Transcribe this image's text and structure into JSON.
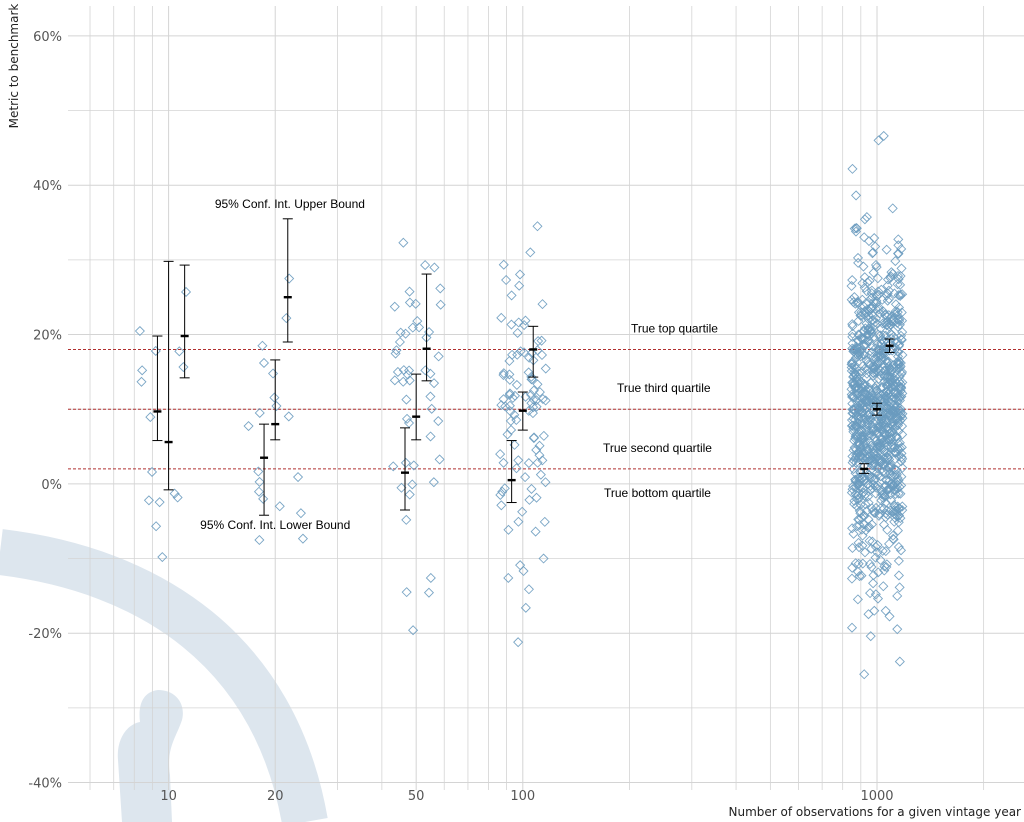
{
  "chart_data": {
    "type": "scatter",
    "title": "",
    "xlabel": "Number of observations for a given vintage year",
    "ylabel": "Metric to benchmark",
    "x_scale": "log",
    "xlim": [
      5.2,
      2600
    ],
    "ylim": [
      -41,
      64
    ],
    "x_ticks": [
      10,
      20,
      50,
      100,
      1000
    ],
    "x_tick_labels": [
      "10",
      "20",
      "50",
      "100",
      "1000"
    ],
    "x_minor_gridlines": [
      6,
      7,
      8,
      9,
      30,
      40,
      60,
      70,
      80,
      90,
      200,
      300,
      400,
      500,
      600,
      700,
      800,
      900,
      2000
    ],
    "y_ticks": [
      -40,
      -20,
      0,
      20,
      40,
      60
    ],
    "y_tick_labels": [
      "-40%",
      "-20%",
      "0%",
      "20%",
      "40%",
      "60%"
    ],
    "y_minor_gridlines": [
      -30,
      -10,
      10,
      30,
      50
    ],
    "grid": true,
    "colors": {
      "points": "#6a9bbf",
      "reference_lines": "#b03030",
      "error_bars": "#000000",
      "grid": "#d4d4d4",
      "watermark": "#dde6ee"
    },
    "reference_lines": [
      {
        "y": 18.0,
        "label": "True top quartile"
      },
      {
        "y": 10.0,
        "label": "True third quartile"
      },
      {
        "y": 2.0,
        "label": "True second quartile"
      }
    ],
    "extra_labels": [
      {
        "label": "True bottom quartile",
        "x": 240,
        "y": -1.2
      }
    ],
    "annotations": [
      {
        "text": "95% Conf. Int. Upper Bound",
        "x": 22,
        "y": 37.5
      },
      {
        "text": "95% Conf. Int. Lower Bound",
        "x": 20,
        "y": -5.5
      }
    ],
    "error_bars": [
      {
        "x": 9.3,
        "mean": 9.7,
        "lower": 5.8,
        "upper": 19.8
      },
      {
        "x": 10.0,
        "mean": 5.6,
        "lower": -0.8,
        "upper": 29.8
      },
      {
        "x": 11.1,
        "mean": 19.8,
        "lower": 14.2,
        "upper": 29.3
      },
      {
        "x": 18.6,
        "mean": 3.5,
        "lower": -4.2,
        "upper": 8.0
      },
      {
        "x": 20.0,
        "mean": 8.0,
        "lower": 5.9,
        "upper": 16.6
      },
      {
        "x": 21.7,
        "mean": 25.0,
        "lower": 19.0,
        "upper": 35.5
      },
      {
        "x": 46.5,
        "mean": 1.5,
        "lower": -3.5,
        "upper": 7.5
      },
      {
        "x": 50.0,
        "mean": 9.0,
        "lower": 5.9,
        "upper": 14.7
      },
      {
        "x": 53.5,
        "mean": 18.1,
        "lower": 13.8,
        "upper": 28.1
      },
      {
        "x": 93.0,
        "mean": 0.5,
        "lower": -2.5,
        "upper": 5.8
      },
      {
        "x": 100.0,
        "mean": 9.8,
        "lower": 7.2,
        "upper": 12.3
      },
      {
        "x": 107.0,
        "mean": 18.0,
        "lower": 14.3,
        "upper": 21.1
      },
      {
        "x": 920,
        "mean": 2.0,
        "lower": 1.4,
        "upper": 2.7
      },
      {
        "x": 1000,
        "mean": 10.0,
        "lower": 9.2,
        "upper": 10.8
      },
      {
        "x": 1085,
        "mean": 18.5,
        "lower": 17.6,
        "upper": 19.4
      }
    ],
    "point_groups": [
      {
        "x_center": 10.0,
        "x_spread": 0.09,
        "count": 10,
        "mean": 9.7,
        "sd": 8.5,
        "seed": 11,
        "extra_points": [
          [
            8.8,
            -2.2
          ],
          [
            9.6,
            -9.8
          ],
          [
            10.4,
            -1.3
          ],
          [
            11.2,
            25.7
          ],
          [
            9.2,
            17.8
          ]
        ]
      },
      {
        "x_center": 20.0,
        "x_spread": 0.09,
        "count": 15,
        "mean": 8.0,
        "sd": 7.0,
        "seed": 23,
        "extra_points": [
          [
            21.9,
            27.5
          ],
          [
            21.5,
            22.2
          ],
          [
            18.4,
            18.5
          ],
          [
            20.6,
            -3.0
          ]
        ]
      },
      {
        "x_center": 50.0,
        "x_spread": 0.07,
        "count": 45,
        "mean": 9.0,
        "sd": 11.5,
        "seed": 37,
        "extra_points": [
          [
            46.0,
            32.3
          ],
          [
            47.0,
            -14.5
          ],
          [
            49.0,
            -19.6
          ],
          [
            55.0,
            -12.6
          ],
          [
            53.0,
            29.3
          ]
        ]
      },
      {
        "x_center": 100.0,
        "x_spread": 0.065,
        "count": 95,
        "mean": 9.8,
        "sd": 9.0,
        "seed": 53,
        "extra_points": [
          [
            110.0,
            34.5
          ],
          [
            105.0,
            31.0
          ],
          [
            102.0,
            -16.6
          ],
          [
            97.0,
            -21.2
          ],
          [
            91.0,
            -12.6
          ]
        ]
      },
      {
        "x_center": 1000,
        "x_spread": 0.072,
        "count": 1000,
        "mean": 10.0,
        "sd": 10.5,
        "seed": 97,
        "extra_points": [
          [
            1045,
            46.6
          ],
          [
            1010,
            46.0
          ],
          [
            920,
            -25.5
          ],
          [
            1160,
            -23.8
          ],
          [
            960,
            -20.4
          ]
        ]
      }
    ]
  }
}
